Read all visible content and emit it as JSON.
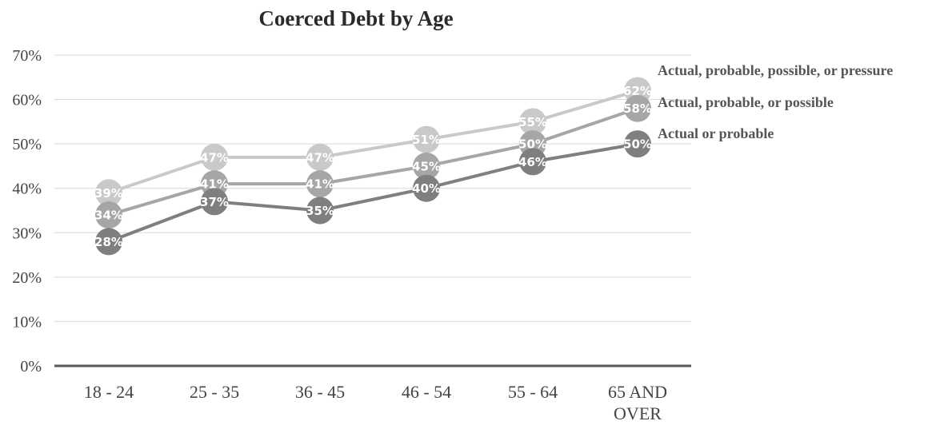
{
  "chart_data": {
    "type": "line",
    "title": "Coerced Debt by Age",
    "categories": [
      "18 - 24",
      "25 - 35",
      "36 - 45",
      "46 - 54",
      "55 - 64",
      "65 AND OVER"
    ],
    "category_label_lines": [
      [
        "18 - 24"
      ],
      [
        "25 - 35"
      ],
      [
        "36 - 45"
      ],
      [
        "46 - 54"
      ],
      [
        "55 - 64"
      ],
      [
        "65 AND",
        "OVER"
      ]
    ],
    "ylim": [
      0,
      70
    ],
    "y_ticks": [
      0,
      10,
      20,
      30,
      40,
      50,
      60,
      70
    ],
    "y_tick_labels": [
      "0%",
      "10%",
      "20%",
      "30%",
      "40%",
      "50%",
      "60%",
      "70%"
    ],
    "grid": true,
    "legend": "series labels at the right end of each line",
    "series": [
      {
        "name": "Actual, probable, possible, or pressure",
        "values": [
          39,
          47,
          47,
          51,
          55,
          62
        ],
        "labels": [
          "39%",
          "47%",
          "47%",
          "51%",
          "55%",
          "62%"
        ],
        "color": "#c9c9c9"
      },
      {
        "name": "Actual, probable, or possible",
        "values": [
          34,
          41,
          41,
          45,
          50,
          58
        ],
        "labels": [
          "34%",
          "41%",
          "41%",
          "45%",
          "50%",
          "58%"
        ],
        "color": "#a6a6a6"
      },
      {
        "name": "Actual or probable",
        "values": [
          28,
          37,
          35,
          40,
          46,
          50
        ],
        "labels": [
          "28%",
          "37%",
          "35%",
          "40%",
          "46%",
          "50%"
        ],
        "color": "#7f7f7f"
      }
    ]
  }
}
